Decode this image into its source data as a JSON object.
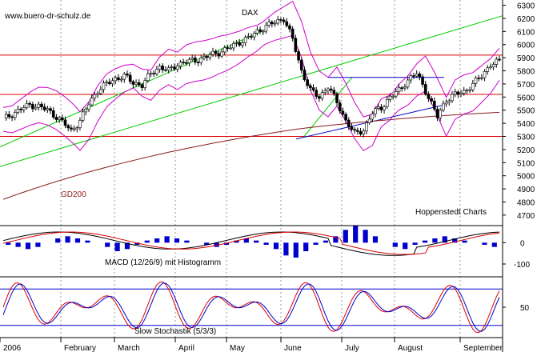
{
  "chart_data": {
    "type": "line",
    "title": "DAX",
    "watermark": "www.buero-dr-schulz.de",
    "source_label": "Hoppenstedt Charts",
    "price_panel": {
      "y_ticks": [
        4700,
        4800,
        4900,
        5000,
        5100,
        5200,
        5300,
        5400,
        5500,
        5600,
        5700,
        5800,
        5900,
        6000,
        6100,
        6200,
        6300
      ],
      "ylim": [
        4620,
        6340
      ],
      "horizontal_levels": [
        5300,
        5620,
        5920
      ],
      "series": [
        {
          "name": "DAX",
          "color": "#000000",
          "x": [
            0,
            3,
            6,
            9,
            12,
            15,
            18,
            21,
            23,
            26,
            29,
            32,
            35,
            38,
            41,
            44,
            47,
            50,
            53,
            56,
            59,
            62,
            65,
            68,
            70,
            73,
            77,
            80,
            83,
            86,
            89,
            92,
            95,
            98,
            101,
            104,
            107,
            110,
            113,
            116,
            119,
            122,
            125,
            128,
            131,
            134,
            137,
            140,
            143,
            147,
            150,
            153,
            156,
            159,
            162,
            165,
            168
          ],
          "values": [
            5430,
            5470,
            5510,
            5540,
            5530,
            5500,
            5450,
            5390,
            5340,
            5420,
            5550,
            5650,
            5700,
            5740,
            5760,
            5710,
            5690,
            5780,
            5830,
            5800,
            5850,
            5870,
            5880,
            5900,
            5920,
            5940,
            5980,
            6020,
            6050,
            6100,
            6140,
            6170,
            6200,
            6040,
            5800,
            5650,
            5600,
            5680,
            5560,
            5420,
            5320,
            5350,
            5480,
            5520,
            5600,
            5650,
            5730,
            5780,
            5650,
            5450,
            5580,
            5620,
            5640,
            5700,
            5760,
            5850,
            5870
          ]
        }
      ],
      "annotations": [
        "GD200"
      ]
    },
    "macd_panel": {
      "label": "MACD (12/26/9) mit Histogramm",
      "y_ticks": [
        0,
        -100
      ],
      "ylim": [
        -160,
        80
      ],
      "histogram": [
        -10,
        -20,
        -30,
        -20,
        0,
        20,
        30,
        20,
        10,
        0,
        -20,
        -40,
        -30,
        -10,
        10,
        20,
        30,
        20,
        10,
        0,
        -10,
        -20,
        -10,
        10,
        20,
        10,
        -10,
        -30,
        -60,
        -70,
        -40,
        -10,
        10,
        30,
        60,
        80,
        60,
        30,
        0,
        -20,
        -30,
        -10,
        10,
        20,
        30,
        20,
        10,
        0,
        -10,
        -20
      ]
    },
    "stochastic_panel": {
      "label": "Slow Stochastik (5/3/3)",
      "y_ticks": [
        50
      ],
      "ylim": [
        0,
        100
      ],
      "levels": [
        20,
        80
      ]
    },
    "x_axis": {
      "labels": [
        "2006",
        "February",
        "March",
        "April",
        "May",
        "June",
        "July",
        "August",
        "September"
      ]
    }
  }
}
